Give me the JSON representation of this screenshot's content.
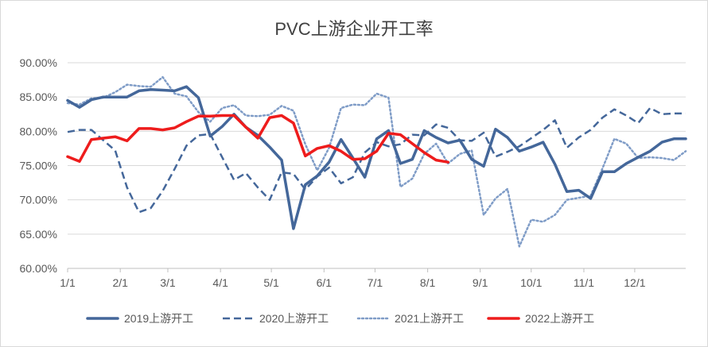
{
  "chart_data": {
    "type": "line",
    "title": "PVC上游企业开工率",
    "xlabel": "",
    "ylabel": "",
    "x_range": [
      1,
      53
    ],
    "ylim": [
      0.6,
      0.9
    ],
    "y_ticks": [
      "60.00%",
      "65.00%",
      "70.00%",
      "75.00%",
      "80.00%",
      "85.00%",
      "90.00%"
    ],
    "x_ticks": [
      {
        "label": "1/1",
        "week": 1
      },
      {
        "label": "2/1",
        "week": 5.43
      },
      {
        "label": "3/1",
        "week": 9.43
      },
      {
        "label": "4/1",
        "week": 13.86
      },
      {
        "label": "5/1",
        "week": 18.14
      },
      {
        "label": "6/1",
        "week": 22.57
      },
      {
        "label": "7/1",
        "week": 26.86
      },
      {
        "label": "8/1",
        "week": 31.29
      },
      {
        "label": "9/1",
        "week": 35.71
      },
      {
        "label": "10/1",
        "week": 40.0
      },
      {
        "label": "11/1",
        "week": 44.43
      },
      {
        "label": "12/1",
        "week": 48.71
      }
    ],
    "grid": true,
    "legend_position": "bottom",
    "series": [
      {
        "name": "2019上游开工",
        "color": "#44679a",
        "style": "solid",
        "x": [
          1,
          2,
          3,
          4,
          5,
          6,
          7,
          8,
          9,
          10,
          11,
          12,
          13,
          14,
          15,
          16,
          17,
          18,
          19,
          20,
          21,
          22,
          23,
          24,
          25,
          26,
          27,
          28,
          29,
          30,
          31,
          32,
          33,
          34,
          35,
          36,
          37,
          38,
          39,
          40,
          41,
          42,
          43,
          44,
          45,
          46,
          47,
          48,
          49,
          50,
          51,
          52,
          53
        ],
        "values": [
          0.845,
          0.835,
          0.846,
          0.85,
          0.85,
          0.85,
          0.859,
          0.861,
          0.86,
          0.859,
          0.865,
          0.849,
          0.793,
          0.807,
          0.825,
          0.806,
          0.794,
          0.777,
          0.758,
          0.658,
          0.722,
          0.735,
          0.755,
          0.788,
          0.761,
          0.733,
          0.789,
          0.801,
          0.753,
          0.759,
          0.801,
          0.791,
          0.783,
          0.787,
          0.759,
          0.749,
          0.803,
          0.791,
          0.771,
          0.777,
          0.784,
          0.752,
          0.712,
          0.714,
          0.702,
          0.741,
          0.741,
          0.753,
          0.762,
          0.771,
          0.784,
          0.789,
          0.789
        ]
      },
      {
        "name": "2020上游开工",
        "color": "#44679a",
        "style": "dashed",
        "x": [
          1,
          2,
          3,
          4,
          5,
          6,
          7,
          8,
          9,
          10,
          11,
          12,
          13,
          14,
          15,
          16,
          17,
          18,
          19,
          20,
          21,
          22,
          23,
          24,
          25,
          26,
          27,
          28,
          29,
          30,
          31,
          32,
          33,
          34,
          35,
          36,
          37,
          38,
          39,
          40,
          41,
          42,
          43,
          44,
          45,
          46,
          47,
          48,
          49,
          50,
          51,
          52,
          53
        ],
        "values": [
          0.799,
          0.802,
          0.802,
          0.787,
          0.772,
          0.718,
          0.682,
          0.688,
          0.713,
          0.745,
          0.779,
          0.794,
          0.796,
          0.762,
          0.729,
          0.739,
          0.718,
          0.7,
          0.74,
          0.738,
          0.715,
          0.734,
          0.747,
          0.724,
          0.733,
          0.769,
          0.784,
          0.778,
          0.781,
          0.795,
          0.794,
          0.81,
          0.805,
          0.787,
          0.786,
          0.798,
          0.763,
          0.77,
          0.778,
          0.79,
          0.802,
          0.816,
          0.776,
          0.791,
          0.802,
          0.82,
          0.832,
          0.823,
          0.812,
          0.834,
          0.825,
          0.826,
          0.826
        ]
      },
      {
        "name": "2021上游开工",
        "color": "#7f9cc7",
        "style": "dotted",
        "x": [
          1,
          2,
          3,
          4,
          5,
          6,
          7,
          8,
          9,
          10,
          11,
          12,
          13,
          14,
          15,
          16,
          17,
          18,
          19,
          20,
          21,
          22,
          23,
          24,
          25,
          26,
          27,
          28,
          29,
          30,
          31,
          32,
          33,
          34,
          35,
          36,
          37,
          38,
          39,
          40,
          41,
          42,
          43,
          44,
          45,
          46,
          47,
          48,
          49,
          50,
          51,
          52,
          53
        ],
        "values": [
          0.841,
          0.839,
          0.848,
          0.849,
          0.857,
          0.868,
          0.866,
          0.865,
          0.879,
          0.855,
          0.851,
          0.828,
          0.814,
          0.834,
          0.838,
          0.823,
          0.822,
          0.824,
          0.837,
          0.83,
          0.781,
          0.743,
          0.776,
          0.834,
          0.839,
          0.838,
          0.855,
          0.849,
          0.719,
          0.731,
          0.767,
          0.782,
          0.753,
          0.767,
          0.772,
          0.678,
          0.702,
          0.716,
          0.632,
          0.671,
          0.668,
          0.678,
          0.7,
          0.703,
          0.706,
          0.746,
          0.789,
          0.782,
          0.761,
          0.762,
          0.761,
          0.758,
          0.771
        ]
      },
      {
        "name": "2022上游开工",
        "color": "#ee1c1c",
        "style": "solid",
        "x": [
          1,
          2,
          3,
          4,
          5,
          6,
          7,
          8,
          9,
          10,
          11,
          12,
          13,
          14,
          15,
          16,
          17,
          18,
          19,
          20,
          21,
          22,
          23,
          24,
          25,
          26,
          27,
          28,
          29,
          30,
          31,
          32,
          33
        ],
        "values": [
          0.763,
          0.756,
          0.788,
          0.79,
          0.792,
          0.786,
          0.804,
          0.804,
          0.802,
          0.805,
          0.814,
          0.822,
          0.822,
          0.823,
          0.823,
          0.806,
          0.79,
          0.82,
          0.823,
          0.812,
          0.764,
          0.775,
          0.779,
          0.771,
          0.759,
          0.76,
          0.771,
          0.797,
          0.795,
          0.782,
          0.769,
          0.758,
          0.755
        ]
      }
    ]
  }
}
